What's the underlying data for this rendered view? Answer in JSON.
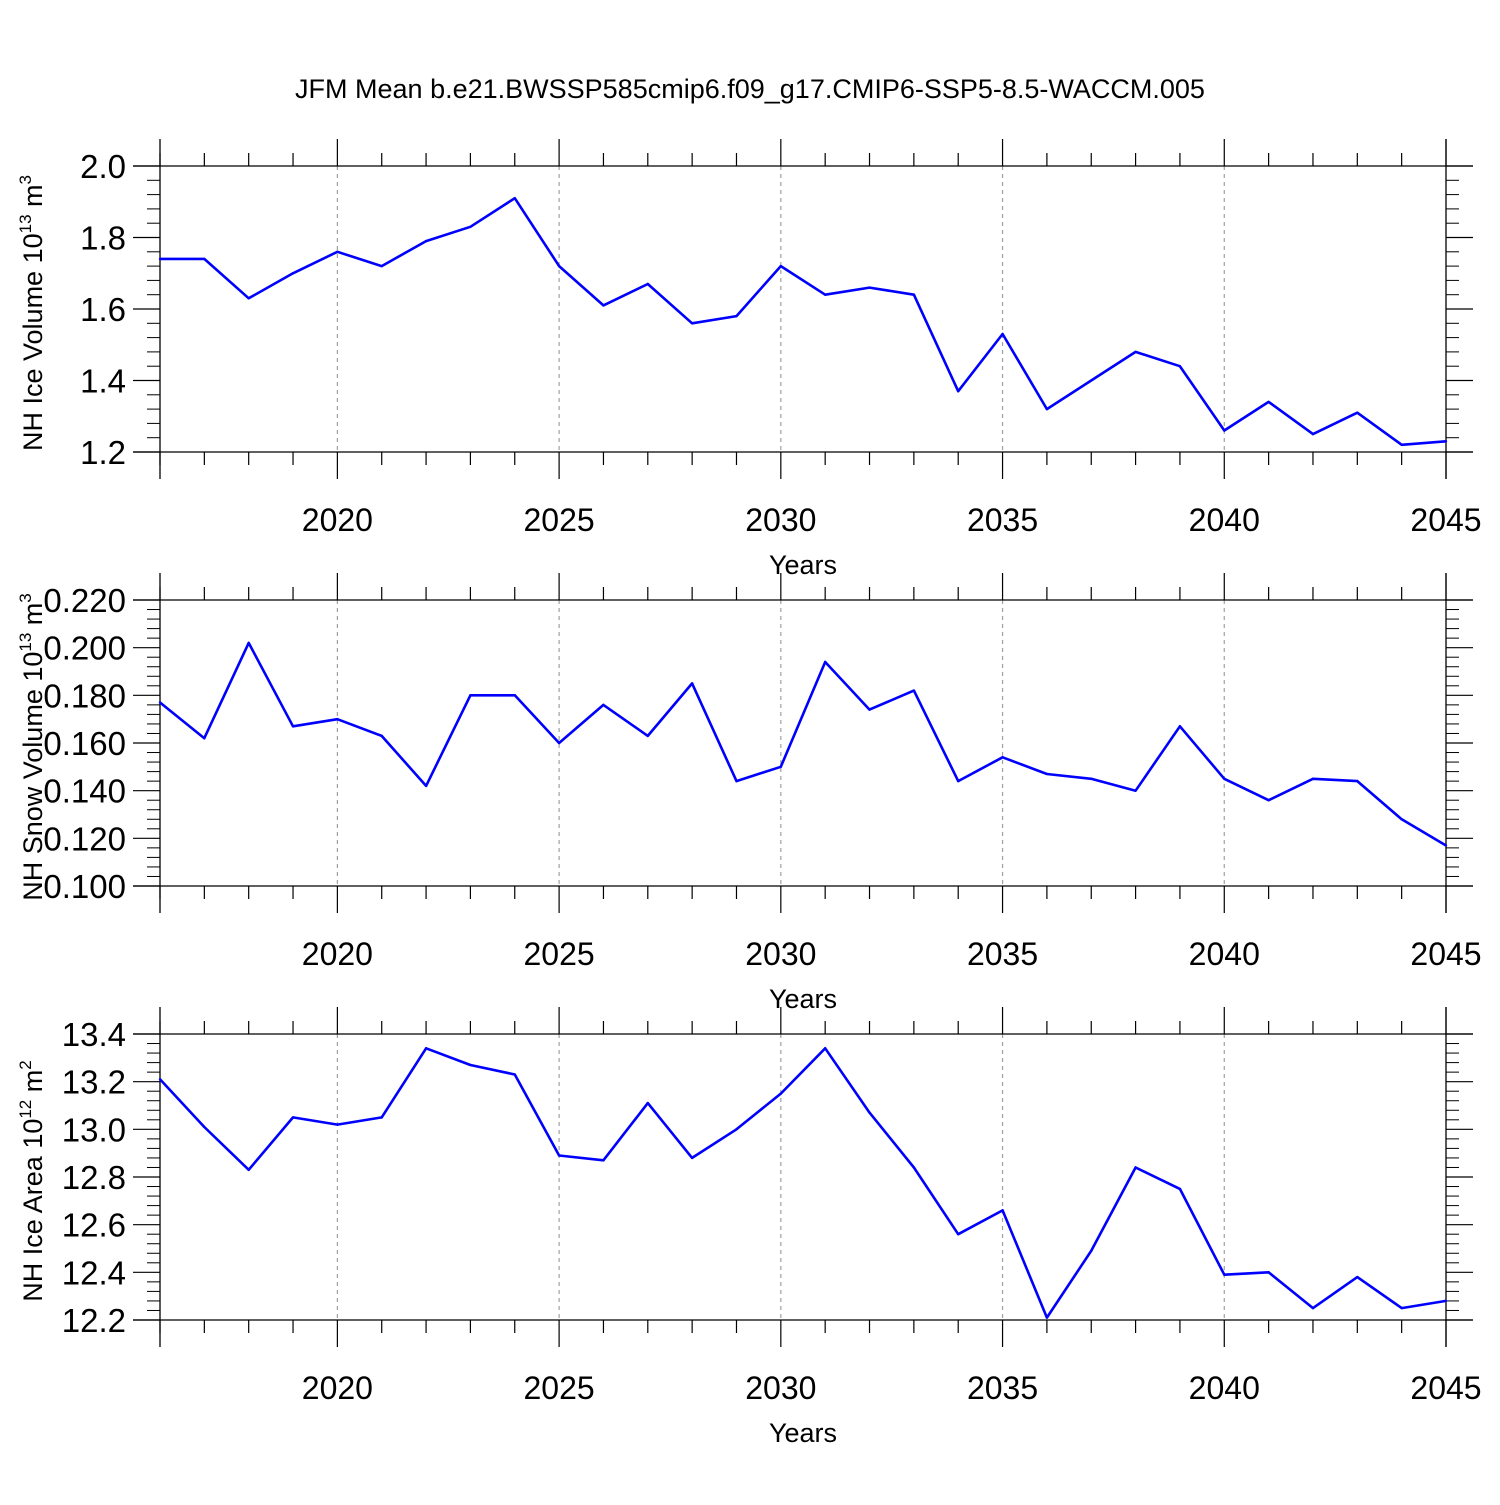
{
  "title": "JFM Mean b.e21.BWSSP585cmip6.f09_g17.CMIP6-SSP5-8.5-WACCM.005",
  "line_color": "#0000ff",
  "grid_color": "#a0a0a0",
  "chart_data": [
    {
      "type": "line",
      "xlabel": "Years",
      "ylabel_parts": {
        "base": "NH Ice Volume 10",
        "sup1": "13",
        "mid": " m",
        "sup2": "3"
      },
      "xlim": [
        2016,
        2045
      ],
      "ylim": [
        1.2,
        2.0
      ],
      "xticks": [
        2020,
        2025,
        2030,
        2035,
        2040,
        2045
      ],
      "yticks": [
        "1.2",
        "1.4",
        "1.6",
        "1.8",
        "2.0"
      ],
      "grid": "vertical dashed at major x ticks",
      "x": [
        2016,
        2017,
        2018,
        2019,
        2020,
        2021,
        2022,
        2023,
        2024,
        2025,
        2026,
        2027,
        2028,
        2029,
        2030,
        2031,
        2032,
        2033,
        2034,
        2035,
        2036,
        2037,
        2038,
        2039,
        2040,
        2041,
        2042,
        2043,
        2044,
        2045
      ],
      "values": [
        1.74,
        1.74,
        1.63,
        1.7,
        1.76,
        1.72,
        1.79,
        1.83,
        1.91,
        1.72,
        1.61,
        1.67,
        1.56,
        1.58,
        1.72,
        1.64,
        1.66,
        1.64,
        1.37,
        1.53,
        1.32,
        1.4,
        1.48,
        1.44,
        1.26,
        1.34,
        1.25,
        1.31,
        1.22,
        1.23
      ]
    },
    {
      "type": "line",
      "xlabel": "Years",
      "ylabel_parts": {
        "base": "NH Snow Volume 10",
        "sup1": "13",
        "mid": " m",
        "sup2": "3"
      },
      "xlim": [
        2016,
        2045
      ],
      "ylim": [
        0.1,
        0.22
      ],
      "xticks": [
        2020,
        2025,
        2030,
        2035,
        2040,
        2045
      ],
      "yticks": [
        "0.100",
        "0.120",
        "0.140",
        "0.160",
        "0.180",
        "0.200",
        "0.220"
      ],
      "grid": "vertical dashed at major x ticks",
      "x": [
        2016,
        2017,
        2018,
        2019,
        2020,
        2021,
        2022,
        2023,
        2024,
        2025,
        2026,
        2027,
        2028,
        2029,
        2030,
        2031,
        2032,
        2033,
        2034,
        2035,
        2036,
        2037,
        2038,
        2039,
        2040,
        2041,
        2042,
        2043,
        2044,
        2045
      ],
      "values": [
        0.177,
        0.162,
        0.202,
        0.167,
        0.17,
        0.163,
        0.142,
        0.18,
        0.18,
        0.16,
        0.176,
        0.163,
        0.185,
        0.144,
        0.15,
        0.194,
        0.174,
        0.182,
        0.144,
        0.154,
        0.147,
        0.145,
        0.14,
        0.167,
        0.145,
        0.136,
        0.145,
        0.144,
        0.128,
        0.117
      ]
    },
    {
      "type": "line",
      "xlabel": "Years",
      "ylabel_parts": {
        "base": "NH Ice Area 10",
        "sup1": "12",
        "mid": " m",
        "sup2": "2"
      },
      "xlim": [
        2016,
        2045
      ],
      "ylim": [
        12.2,
        13.4
      ],
      "xticks": [
        2020,
        2025,
        2030,
        2035,
        2040,
        2045
      ],
      "yticks": [
        "12.2",
        "12.4",
        "12.6",
        "12.8",
        "13.0",
        "13.2",
        "13.4"
      ],
      "grid": "vertical dashed at major x ticks",
      "x": [
        2016,
        2017,
        2018,
        2019,
        2020,
        2021,
        2022,
        2023,
        2024,
        2025,
        2026,
        2027,
        2028,
        2029,
        2030,
        2031,
        2032,
        2033,
        2034,
        2035,
        2036,
        2037,
        2038,
        2039,
        2040,
        2041,
        2042,
        2043,
        2044,
        2045
      ],
      "values": [
        13.21,
        13.01,
        12.83,
        13.05,
        13.02,
        13.05,
        13.34,
        13.27,
        13.23,
        12.89,
        12.87,
        13.11,
        12.88,
        13.0,
        13.15,
        13.34,
        13.07,
        12.84,
        12.56,
        12.66,
        12.21,
        12.49,
        12.84,
        12.75,
        12.39,
        12.4,
        12.25,
        12.38,
        12.25,
        12.28
      ]
    }
  ]
}
